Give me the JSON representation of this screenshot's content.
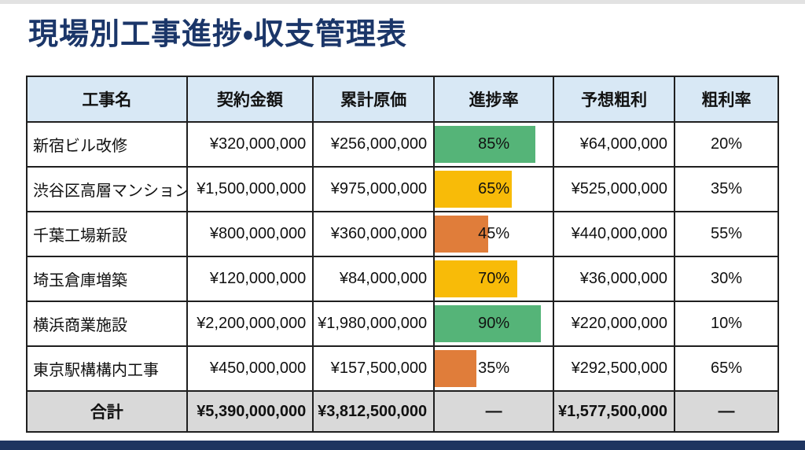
{
  "page": {
    "title": "現場別工事進捗・収支管理表"
  },
  "colors": {
    "title_navy": "#1b3669",
    "header_bg": "#d8e8f5",
    "total_bg": "#d9d9d9",
    "footer_bar": "#1e3560",
    "progress_green": "#55b478",
    "progress_yellow": "#f8bb08",
    "progress_orange": "#e07d3a"
  },
  "table": {
    "headers": [
      "工事名",
      "契約金額",
      "累計原価",
      "進捗率",
      "予想粗利",
      "粗利率"
    ],
    "rows": [
      {
        "name": "新宿ビル改修",
        "contract": "¥320,000,000",
        "cost": "¥256,000,000",
        "progress_label": "85%",
        "progress_pct": 85,
        "progress_color": "#55b478",
        "profit": "¥64,000,000",
        "margin": "20%"
      },
      {
        "name": "渋谷区高層マンション",
        "contract": "¥1,500,000,000",
        "cost": "¥975,000,000",
        "progress_label": "65%",
        "progress_pct": 65,
        "progress_color": "#f8bb08",
        "profit": "¥525,000,000",
        "margin": "35%"
      },
      {
        "name": "千葉工場新設",
        "contract": "¥800,000,000",
        "cost": "¥360,000,000",
        "progress_label": "45%",
        "progress_pct": 45,
        "progress_color": "#e07d3a",
        "profit": "¥440,000,000",
        "margin": "55%"
      },
      {
        "name": "埼玉倉庫増築",
        "contract": "¥120,000,000",
        "cost": "¥84,000,000",
        "progress_label": "70%",
        "progress_pct": 70,
        "progress_color": "#f8bb08",
        "profit": "¥36,000,000",
        "margin": "30%"
      },
      {
        "name": "横浜商業施設",
        "contract": "¥2,200,000,000",
        "cost": "¥1,980,000,000",
        "progress_label": "90%",
        "progress_pct": 90,
        "progress_color": "#55b478",
        "profit": "¥220,000,000",
        "margin": "10%"
      },
      {
        "name": "東京駅構構内工事",
        "contract": "¥450,000,000",
        "cost": "¥157,500,000",
        "progress_label": "35%",
        "progress_pct": 35,
        "progress_color": "#e07d3a",
        "profit": "¥292,500,000",
        "margin": "65%"
      }
    ],
    "total": {
      "label": "合計",
      "contract": "¥5,390,000,000",
      "cost": "¥3,812,500,000",
      "progress": "—",
      "profit": "¥1,577,500,000",
      "margin": "—"
    }
  }
}
